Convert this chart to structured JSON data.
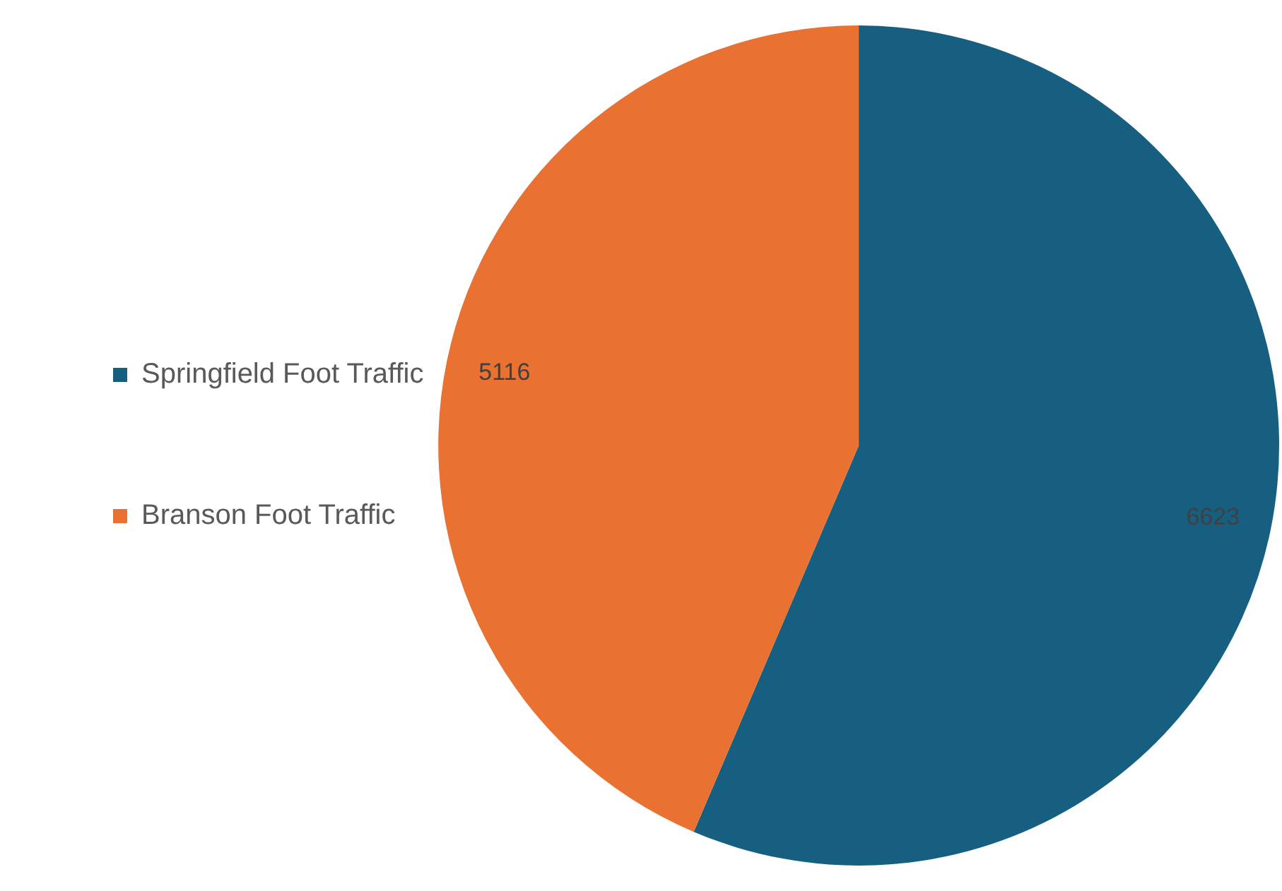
{
  "chart_data": {
    "type": "pie",
    "categories": [
      "Springfield Foot Traffic",
      "Branson Foot Traffic"
    ],
    "values": [
      6623,
      5116
    ],
    "colors": [
      "#175f80",
      "#e97132"
    ],
    "data_labels": true,
    "legend": "left"
  }
}
